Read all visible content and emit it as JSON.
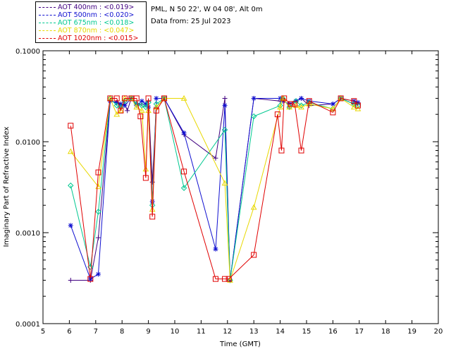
{
  "header": {
    "location": "PML, N 50 22', W 04 08', Alt 0m",
    "date": "Data from: 25 Jul 2023"
  },
  "legend": [
    {
      "label": "AOT  400nm : <0.019>",
      "color": "#400080"
    },
    {
      "label": "AOT  500nm : <0.020>",
      "color": "#1010d0"
    },
    {
      "label": "AOT  675nm : <0.018>",
      "color": "#00c890"
    },
    {
      "label": "AOT  870nm : <0.047>",
      "color": "#e8d800"
    },
    {
      "label": "AOT 1020nm : <0.015>",
      "color": "#e00000"
    }
  ],
  "chart_data": {
    "type": "scatter",
    "title": "",
    "xlabel": "Time (GMT)",
    "ylabel": "Imaginary Part of Refractive Index",
    "xlim": [
      5,
      20
    ],
    "ylim": [
      0.0001,
      0.1
    ],
    "yscale": "log",
    "xticks": [
      "5",
      "6",
      "7",
      "8",
      "9",
      "10",
      "11",
      "12",
      "13",
      "14",
      "15",
      "16",
      "17",
      "18",
      "19",
      "20"
    ],
    "yticks": [
      "0.0001",
      "0.0010",
      "0.0100",
      "0.1000"
    ],
    "series": [
      {
        "name": "AOT 400nm",
        "color": "#400080",
        "marker": "+",
        "points": [
          [
            6.05,
            0.0003
          ],
          [
            6.8,
            0.0003
          ],
          [
            7.1,
            0.00088
          ],
          [
            7.55,
            0.028
          ],
          [
            7.8,
            0.027
          ],
          [
            7.95,
            0.025
          ],
          [
            8.1,
            0.026
          ],
          [
            8.2,
            0.022
          ],
          [
            8.35,
            0.03
          ],
          [
            8.55,
            0.026
          ],
          [
            8.75,
            0.026
          ],
          [
            8.9,
            0.026
          ],
          [
            9.0,
            0.028
          ],
          [
            9.15,
            0.0036
          ],
          [
            9.3,
            0.024
          ],
          [
            9.6,
            0.03
          ],
          [
            10.35,
            0.012
          ],
          [
            11.55,
            0.0066
          ],
          [
            11.9,
            0.03
          ],
          [
            12.1,
            0.0003
          ],
          [
            13.0,
            0.03
          ],
          [
            14.0,
            0.028
          ],
          [
            14.1,
            0.03
          ],
          [
            14.35,
            0.024
          ],
          [
            14.6,
            0.028
          ],
          [
            14.8,
            0.03
          ],
          [
            15.1,
            0.025
          ],
          [
            16.0,
            0.026
          ],
          [
            16.3,
            0.03
          ],
          [
            16.8,
            0.026
          ],
          [
            16.95,
            0.026
          ]
        ]
      },
      {
        "name": "AOT 500nm",
        "color": "#1010d0",
        "marker": "*",
        "points": [
          [
            6.05,
            0.0012
          ],
          [
            6.8,
            0.00031
          ],
          [
            7.1,
            0.00035
          ],
          [
            7.55,
            0.028
          ],
          [
            7.8,
            0.027
          ],
          [
            7.95,
            0.026
          ],
          [
            8.1,
            0.025
          ],
          [
            8.35,
            0.03
          ],
          [
            8.55,
            0.025
          ],
          [
            8.75,
            0.028
          ],
          [
            8.9,
            0.026
          ],
          [
            9.0,
            0.024
          ],
          [
            9.15,
            0.0022
          ],
          [
            9.3,
            0.03
          ],
          [
            9.6,
            0.03
          ],
          [
            10.35,
            0.0125
          ],
          [
            11.55,
            0.00066
          ],
          [
            11.9,
            0.025
          ],
          [
            12.1,
            0.0003
          ],
          [
            13.0,
            0.03
          ],
          [
            14.0,
            0.03
          ],
          [
            14.1,
            0.028
          ],
          [
            14.35,
            0.026
          ],
          [
            14.6,
            0.028
          ],
          [
            14.8,
            0.03
          ],
          [
            15.1,
            0.028
          ],
          [
            16.0,
            0.026
          ],
          [
            16.3,
            0.03
          ],
          [
            16.8,
            0.028
          ],
          [
            16.95,
            0.027
          ]
        ]
      },
      {
        "name": "AOT 675nm",
        "color": "#00c890",
        "marker": "diamond",
        "points": [
          [
            6.05,
            0.0033
          ],
          [
            6.8,
            0.00042
          ],
          [
            7.1,
            0.0017
          ],
          [
            7.55,
            0.03
          ],
          [
            7.8,
            0.025
          ],
          [
            7.95,
            0.024
          ],
          [
            8.1,
            0.028
          ],
          [
            8.35,
            0.03
          ],
          [
            8.55,
            0.026
          ],
          [
            8.75,
            0.025
          ],
          [
            8.9,
            0.024
          ],
          [
            9.0,
            0.027
          ],
          [
            9.15,
            0.002
          ],
          [
            9.3,
            0.026
          ],
          [
            9.6,
            0.03
          ],
          [
            10.35,
            0.0031
          ],
          [
            11.9,
            0.0135
          ],
          [
            12.1,
            0.0003
          ],
          [
            13.0,
            0.019
          ],
          [
            14.0,
            0.025
          ],
          [
            14.1,
            0.03
          ],
          [
            14.35,
            0.024
          ],
          [
            14.6,
            0.028
          ],
          [
            14.8,
            0.025
          ],
          [
            15.1,
            0.027
          ],
          [
            16.0,
            0.023
          ],
          [
            16.3,
            0.03
          ],
          [
            16.8,
            0.026
          ],
          [
            16.95,
            0.025
          ]
        ]
      },
      {
        "name": "AOT 870nm",
        "color": "#e8d800",
        "marker": "triangle",
        "points": [
          [
            6.05,
            0.0078
          ],
          [
            7.1,
            0.0032
          ],
          [
            7.55,
            0.03
          ],
          [
            7.8,
            0.02
          ],
          [
            7.95,
            0.022
          ],
          [
            8.1,
            0.03
          ],
          [
            8.35,
            0.03
          ],
          [
            8.55,
            0.024
          ],
          [
            8.75,
            0.022
          ],
          [
            8.9,
            0.005
          ],
          [
            9.0,
            0.022
          ],
          [
            9.15,
            0.0018
          ],
          [
            9.3,
            0.024
          ],
          [
            9.6,
            0.03
          ],
          [
            10.35,
            0.03
          ],
          [
            11.9,
            0.0035
          ],
          [
            12.1,
            0.0003
          ],
          [
            13.0,
            0.0019
          ],
          [
            14.0,
            0.024
          ],
          [
            14.1,
            0.03
          ],
          [
            14.35,
            0.024
          ],
          [
            14.6,
            0.025
          ],
          [
            14.8,
            0.024
          ],
          [
            15.1,
            0.026
          ],
          [
            16.0,
            0.023
          ],
          [
            16.3,
            0.03
          ],
          [
            16.8,
            0.024
          ],
          [
            16.95,
            0.023
          ]
        ]
      },
      {
        "name": "AOT 1020nm",
        "color": "#e00000",
        "marker": "square",
        "points": [
          [
            6.05,
            0.015
          ],
          [
            6.8,
            0.00031
          ],
          [
            7.1,
            0.0046
          ],
          [
            7.55,
            0.03
          ],
          [
            7.8,
            0.03
          ],
          [
            7.95,
            0.022
          ],
          [
            8.1,
            0.03
          ],
          [
            8.35,
            0.03
          ],
          [
            8.55,
            0.03
          ],
          [
            8.7,
            0.019
          ],
          [
            8.9,
            0.004
          ],
          [
            9.0,
            0.03
          ],
          [
            9.15,
            0.0015
          ],
          [
            9.3,
            0.022
          ],
          [
            9.6,
            0.03
          ],
          [
            10.35,
            0.0047
          ],
          [
            11.55,
            0.00031
          ],
          [
            11.9,
            0.00031
          ],
          [
            12.05,
            0.00031
          ],
          [
            13.0,
            0.00057
          ],
          [
            13.9,
            0.02
          ],
          [
            14.05,
            0.008
          ],
          [
            14.15,
            0.03
          ],
          [
            14.4,
            0.026
          ],
          [
            14.55,
            0.026
          ],
          [
            14.8,
            0.008
          ],
          [
            15.1,
            0.028
          ],
          [
            16.0,
            0.021
          ],
          [
            16.3,
            0.03
          ],
          [
            16.8,
            0.028
          ],
          [
            16.95,
            0.025
          ]
        ]
      }
    ]
  }
}
